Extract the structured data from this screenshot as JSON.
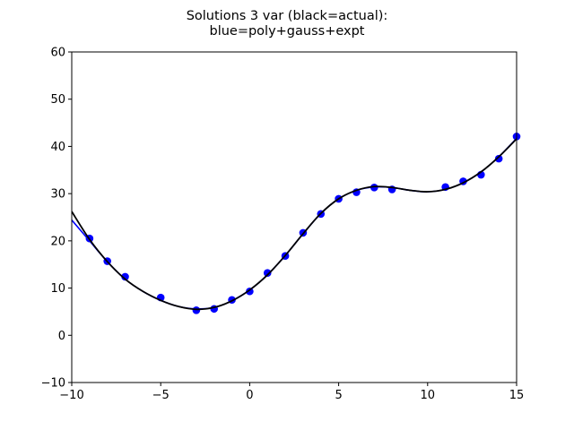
{
  "chart_data": {
    "type": "line",
    "title_line1": "Solutions 3 var (black=actual):",
    "title_line2": "blue=poly+gauss+expt",
    "xlabel": "",
    "ylabel": "",
    "xlim": [
      -10,
      15
    ],
    "ylim": [
      -10,
      60
    ],
    "x_ticks": [
      -10,
      -5,
      0,
      5,
      10,
      15
    ],
    "y_ticks": [
      -10,
      0,
      10,
      20,
      30,
      40,
      50,
      60
    ],
    "grid": false,
    "colors": {
      "actual": "#000000",
      "fit": "#0000ff",
      "points": "#0000ff"
    },
    "points": {
      "x": [
        -9,
        -8,
        -7,
        -5,
        -3,
        -2,
        -1,
        0,
        1,
        2,
        3,
        4,
        5,
        6,
        7,
        8,
        11,
        12,
        13,
        14,
        15
      ],
      "y": [
        20.5,
        15.7,
        12.4,
        8.0,
        5.3,
        5.6,
        7.5,
        9.3,
        13.2,
        16.8,
        21.7,
        25.7,
        28.9,
        30.3,
        31.3,
        30.9,
        31.4,
        32.6,
        34.0,
        37.4,
        42.1
      ]
    },
    "series": [
      {
        "name": "actual",
        "x": [
          -10,
          -9,
          -8,
          -7,
          -6,
          -5,
          -4,
          -3,
          -2,
          -1,
          0,
          1,
          2,
          3,
          4,
          5,
          6,
          7,
          8,
          9,
          10,
          11,
          12,
          13,
          14,
          15
        ],
        "y": [
          26.2,
          20.3,
          15.6,
          11.9,
          9.3,
          7.4,
          6.1,
          5.5,
          5.9,
          7.3,
          9.6,
          12.8,
          16.9,
          21.5,
          25.8,
          28.9,
          30.7,
          31.5,
          31.3,
          30.7,
          30.4,
          30.9,
          32.3,
          34.6,
          37.8,
          41.6
        ]
      },
      {
        "name": "poly+gauss+expt",
        "x": [
          -10,
          -9,
          -8,
          -7,
          -6,
          -5,
          -4,
          -3,
          -2,
          -1,
          0,
          1,
          2,
          3,
          4,
          5,
          6,
          7,
          8,
          9,
          10,
          11,
          12,
          13,
          14,
          15
        ],
        "y": [
          24.4,
          20.0,
          15.6,
          11.9,
          9.3,
          7.4,
          6.1,
          5.6,
          5.9,
          7.3,
          9.6,
          12.8,
          16.9,
          21.5,
          25.8,
          28.9,
          30.7,
          31.4,
          31.3,
          30.7,
          30.4,
          30.9,
          32.3,
          34.6,
          37.8,
          41.7
        ]
      }
    ]
  }
}
